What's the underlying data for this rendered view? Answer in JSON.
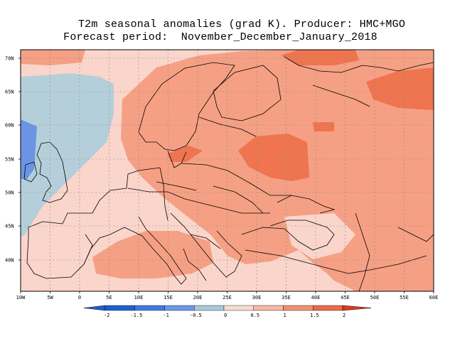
{
  "title": {
    "line1": "T2m seasonal anomalies (grad K). Producer: HMC+MGO",
    "line2": "Forecast period:  November_December_January_2018"
  },
  "axes": {
    "lat_labels": [
      "70N",
      "65N",
      "60N",
      "55N",
      "50N",
      "45N",
      "40N"
    ],
    "lon_labels": [
      "10W",
      "5W",
      "0",
      "5E",
      "10E",
      "15E",
      "20E",
      "25E",
      "30E",
      "35E",
      "40E",
      "45E",
      "50E",
      "55E",
      "60E"
    ]
  },
  "colorbar": {
    "labels": [
      "-2",
      "-1.5",
      "-1",
      "-0.5",
      "0",
      "0.5",
      "1",
      "1.5",
      "2"
    ],
    "colors": [
      "#1f5fd0",
      "#3d7ae0",
      "#6a98e8",
      "#a9c8dc",
      "#f6dcd2",
      "#f8b8a3",
      "#f1906f",
      "#ec6a48",
      "#e03a1f"
    ]
  },
  "map_colors": {
    "cool": "#b5cfda",
    "blue": "#6b95e4",
    "light": "#fad5cb",
    "mid": "#f5a084",
    "strong": "#ee754f"
  }
}
